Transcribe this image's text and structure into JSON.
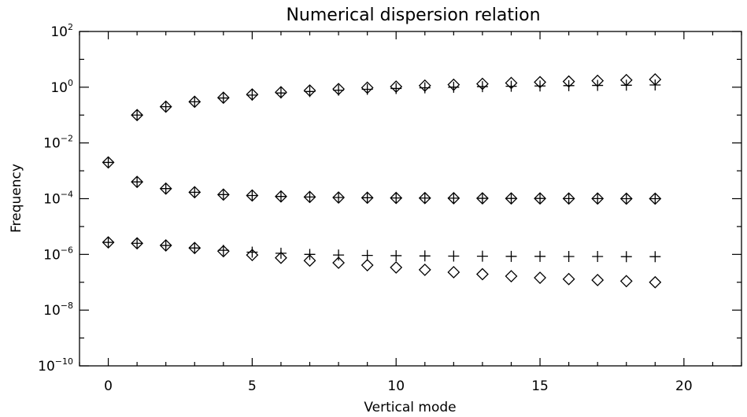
{
  "chart_data": {
    "type": "scatter",
    "title": "Numerical dispersion relation",
    "xlabel": "Vertical mode",
    "ylabel": "Frequency",
    "xlim": [
      -1,
      22
    ],
    "ylim": [
      1e-10,
      100
    ],
    "yscale": "log",
    "grid": false,
    "x_ticks": [
      {
        "value": 0,
        "label": "0"
      },
      {
        "value": 5,
        "label": "5"
      },
      {
        "value": 10,
        "label": "10"
      },
      {
        "value": 15,
        "label": "15"
      },
      {
        "value": 20,
        "label": "20"
      }
    ],
    "y_ticks": [
      {
        "value": 100,
        "base": "10",
        "exp": "2"
      },
      {
        "value": 1,
        "base": "10",
        "exp": "0"
      },
      {
        "value": 0.01,
        "base": "10",
        "exp": "−2"
      },
      {
        "value": 0.0001,
        "base": "10",
        "exp": "−4"
      },
      {
        "value": 1e-06,
        "base": "10",
        "exp": "−6"
      },
      {
        "value": 1e-08,
        "base": "10",
        "exp": "−8"
      },
      {
        "value": 1e-10,
        "base": "10",
        "exp": "−10"
      }
    ],
    "series": [
      {
        "marker": "plus",
        "groups": [
          {
            "x": [
              1,
              2,
              3,
              4,
              5,
              6,
              7,
              8,
              9,
              10,
              11,
              12,
              13,
              14,
              15,
              16,
              17,
              18,
              19
            ],
            "y": [
              0.1,
              0.2,
              0.3,
              0.41,
              0.52,
              0.62,
              0.7,
              0.78,
              0.84,
              0.9,
              0.95,
              1.0,
              1.05,
              1.08,
              1.11,
              1.14,
              1.16,
              1.18,
              1.2
            ]
          },
          {
            "x": [
              0,
              1,
              2,
              3,
              4,
              5,
              6,
              7,
              8,
              9,
              10,
              11,
              12,
              13,
              14,
              15,
              16,
              17,
              18,
              19
            ],
            "y": [
              0.002,
              0.0004,
              0.00023,
              0.00017,
              0.00014,
              0.00013,
              0.00012,
              0.000115,
              0.00011,
              0.000108,
              0.000106,
              0.000105,
              0.000104,
              0.000103,
              0.000102,
              0.000102,
              0.000101,
              0.000101,
              0.0001,
              0.0001
            ]
          },
          {
            "x": [
              0,
              1,
              2,
              3,
              4,
              5,
              6,
              7,
              8,
              9,
              10,
              11,
              12,
              13,
              14,
              15,
              16,
              17,
              18,
              19
            ],
            "y": [
              2.7e-06,
              2.5e-06,
              2.1e-06,
              1.7e-06,
              1.4e-06,
              1.2e-06,
              1.1e-06,
              1e-06,
              9.5e-07,
              9.2e-07,
              9e-07,
              8.8e-07,
              8.7e-07,
              8.6e-07,
              8.5e-07,
              8.5e-07,
              8.4e-07,
              8.4e-07,
              8.3e-07,
              8.3e-07
            ]
          }
        ]
      },
      {
        "marker": "diamond",
        "groups": [
          {
            "x": [
              1,
              2,
              3,
              4,
              5,
              6,
              7,
              8,
              9,
              10,
              11,
              12,
              13,
              14,
              15,
              16,
              17,
              18,
              19
            ],
            "y": [
              0.1,
              0.2,
              0.3,
              0.42,
              0.55,
              0.66,
              0.76,
              0.86,
              0.96,
              1.05,
              1.14,
              1.23,
              1.32,
              1.42,
              1.52,
              1.6,
              1.7,
              1.8,
              1.9
            ]
          },
          {
            "x": [
              0,
              1,
              2,
              3,
              4,
              5,
              6,
              7,
              8,
              9,
              10,
              11,
              12,
              13,
              14,
              15,
              16,
              17,
              18,
              19
            ],
            "y": [
              0.002,
              0.0004,
              0.00023,
              0.00017,
              0.00014,
              0.00013,
              0.00012,
              0.000115,
              0.00011,
              0.000108,
              0.000106,
              0.000105,
              0.000104,
              0.000103,
              0.000102,
              0.000102,
              0.000101,
              0.000101,
              0.0001,
              0.0001
            ]
          },
          {
            "x": [
              0,
              1,
              2,
              3,
              4,
              5,
              6,
              7,
              8,
              9,
              10,
              11,
              12,
              13,
              14,
              15,
              16,
              17,
              18,
              19
            ],
            "y": [
              2.7e-06,
              2.5e-06,
              2.1e-06,
              1.7e-06,
              1.3e-06,
              9.5e-07,
              7.5e-07,
              6e-07,
              5e-07,
              4.1e-07,
              3.4e-07,
              2.8e-07,
              2.3e-07,
              1.95e-07,
              1.65e-07,
              1.45e-07,
              1.3e-07,
              1.2e-07,
              1.1e-07,
              1e-07
            ]
          }
        ]
      }
    ]
  }
}
